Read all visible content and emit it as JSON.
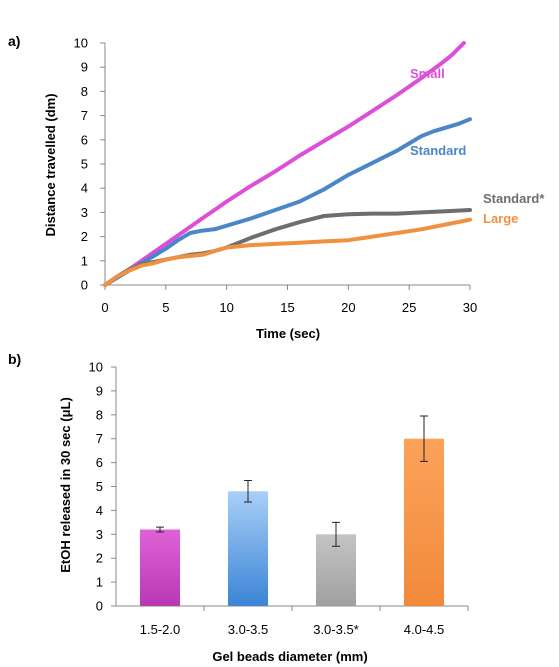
{
  "chart_data": [
    {
      "panel_label": "a)",
      "type": "line",
      "xlabel": "Time (sec)",
      "ylabel": "Distance travelled (dm)",
      "xlim": [
        0,
        30
      ],
      "ylim": [
        0,
        10
      ],
      "xticks": [
        "0",
        "5",
        "10",
        "15",
        "20",
        "25",
        "30"
      ],
      "yticks": [
        "0",
        "1",
        "2",
        "3",
        "4",
        "5",
        "6",
        "7",
        "8",
        "9",
        "10"
      ],
      "grid": false,
      "legend": "inline labels at line ends",
      "series": [
        {
          "name": "Small",
          "color": "#dd4fd9",
          "points": [
            [
              0,
              0
            ],
            [
              1,
              0.3
            ],
            [
              2,
              0.65
            ],
            [
              3,
              1.0
            ],
            [
              4,
              1.35
            ],
            [
              5,
              1.7
            ],
            [
              6,
              2.05
            ],
            [
              7,
              2.4
            ],
            [
              8,
              2.75
            ],
            [
              9,
              3.1
            ],
            [
              10,
              3.45
            ],
            [
              12,
              4.1
            ],
            [
              14,
              4.7
            ],
            [
              16,
              5.35
            ],
            [
              18,
              5.95
            ],
            [
              20,
              6.55
            ],
            [
              22,
              7.2
            ],
            [
              24,
              7.85
            ],
            [
              26,
              8.55
            ],
            [
              27.5,
              9.1
            ],
            [
              28.5,
              9.5
            ],
            [
              29.5,
              10.0
            ]
          ]
        },
        {
          "name": "Standard",
          "color": "#4a86c8",
          "points": [
            [
              0,
              0
            ],
            [
              1,
              0.3
            ],
            [
              2,
              0.6
            ],
            [
              3,
              0.9
            ],
            [
              4,
              1.2
            ],
            [
              5,
              1.5
            ],
            [
              6,
              1.85
            ],
            [
              7,
              2.15
            ],
            [
              8,
              2.25
            ],
            [
              9,
              2.3
            ],
            [
              10,
              2.45
            ],
            [
              12,
              2.75
            ],
            [
              14,
              3.1
            ],
            [
              16,
              3.45
            ],
            [
              18,
              3.95
            ],
            [
              20,
              4.55
            ],
            [
              22,
              5.05
            ],
            [
              24,
              5.55
            ],
            [
              25,
              5.85
            ],
            [
              26,
              6.15
            ],
            [
              27,
              6.35
            ],
            [
              28,
              6.5
            ],
            [
              29,
              6.65
            ],
            [
              30,
              6.85
            ]
          ]
        },
        {
          "name": "Standard*",
          "color": "#6e6e6e",
          "points": [
            [
              0,
              0
            ],
            [
              1,
              0.35
            ],
            [
              2,
              0.65
            ],
            [
              3,
              0.85
            ],
            [
              4,
              0.95
            ],
            [
              5,
              1.05
            ],
            [
              6,
              1.15
            ],
            [
              7,
              1.25
            ],
            [
              8,
              1.3
            ],
            [
              9,
              1.4
            ],
            [
              10,
              1.55
            ],
            [
              12,
              1.95
            ],
            [
              14,
              2.3
            ],
            [
              16,
              2.6
            ],
            [
              18,
              2.85
            ],
            [
              20,
              2.92
            ],
            [
              22,
              2.95
            ],
            [
              24,
              2.95
            ],
            [
              26,
              3.0
            ],
            [
              28,
              3.05
            ],
            [
              30,
              3.1
            ]
          ]
        },
        {
          "name": "Large",
          "color": "#f0913f",
          "points": [
            [
              0,
              0
            ],
            [
              1,
              0.35
            ],
            [
              2,
              0.6
            ],
            [
              3,
              0.8
            ],
            [
              4,
              0.9
            ],
            [
              5,
              1.05
            ],
            [
              6,
              1.15
            ],
            [
              8,
              1.25
            ],
            [
              10,
              1.55
            ],
            [
              12,
              1.65
            ],
            [
              14,
              1.7
            ],
            [
              16,
              1.75
            ],
            [
              18,
              1.8
            ],
            [
              20,
              1.85
            ],
            [
              22,
              2.0
            ],
            [
              24,
              2.15
            ],
            [
              26,
              2.3
            ],
            [
              28,
              2.5
            ],
            [
              30,
              2.7
            ]
          ]
        }
      ]
    },
    {
      "panel_label": "b)",
      "type": "bar",
      "xlabel": "Gel beads diameter (mm)",
      "ylabel": "EtOH released in 30 sec (μL)",
      "ylim": [
        0,
        10
      ],
      "yticks": [
        "0",
        "1",
        "2",
        "3",
        "4",
        "5",
        "6",
        "7",
        "8",
        "9",
        "10"
      ],
      "grid": false,
      "categories": [
        "1.5-2.0",
        "3.0-3.5",
        "3.0-3.5*",
        "4.0-4.5"
      ],
      "values": [
        3.2,
        4.8,
        3.0,
        7.0
      ],
      "errors": [
        0.1,
        0.45,
        0.5,
        0.95
      ],
      "colors": [
        {
          "top": "#e062d8",
          "bottom": "#b838b3"
        },
        {
          "top": "#a9cff8",
          "bottom": "#3b84d6"
        },
        {
          "top": "#c4c4c4",
          "bottom": "#a0a0a0"
        },
        {
          "top": "#fba35a",
          "bottom": "#f2893a"
        }
      ]
    }
  ]
}
